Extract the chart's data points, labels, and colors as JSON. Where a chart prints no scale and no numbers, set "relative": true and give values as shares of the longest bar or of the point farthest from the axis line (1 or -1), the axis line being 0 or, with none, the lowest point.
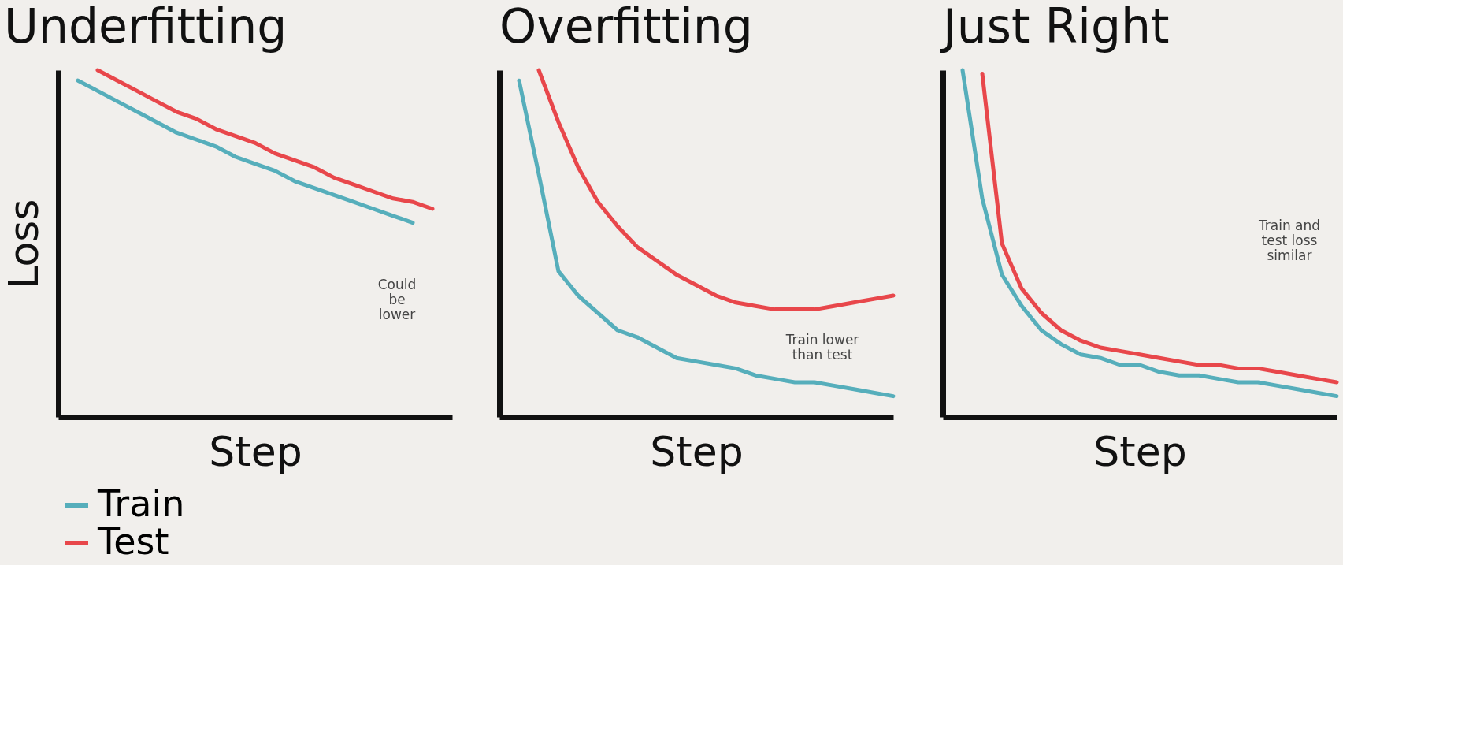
{
  "chart_data": [
    {
      "type": "line",
      "title": "Underfitting",
      "xlabel": "Step",
      "ylabel": "Loss",
      "relative": true,
      "grid": false,
      "legend": "bottom",
      "marker": "none",
      "line_style": "solid",
      "tick_labels": false,
      "categories": [
        null,
        null,
        null,
        null,
        null,
        null,
        null,
        null,
        null,
        null,
        null,
        null,
        null,
        null,
        null,
        null,
        null,
        null,
        null,
        null,
        null
      ],
      "series": [
        {
          "name": "Train",
          "color": "#56aebb",
          "values": [
            null,
            0.97,
            0.94,
            0.91,
            0.88,
            0.85,
            0.82,
            0.8,
            0.78,
            0.75,
            0.73,
            0.71,
            0.68,
            0.66,
            0.64,
            0.62,
            0.6,
            0.58,
            0.56,
            null,
            null
          ]
        },
        {
          "name": "Test",
          "color": "#e8474b",
          "values": [
            null,
            null,
            1.0,
            0.97,
            0.94,
            0.91,
            0.88,
            0.86,
            0.83,
            0.81,
            0.79,
            0.76,
            0.74,
            0.72,
            0.69,
            0.67,
            0.65,
            0.63,
            0.62,
            0.6,
            null
          ]
        }
      ],
      "annotations": [
        "Could\nbe\nlower"
      ]
    },
    {
      "type": "line",
      "title": "Overfitting",
      "xlabel": "Step",
      "relative": true,
      "grid": false,
      "legend": "bottom",
      "marker": "none",
      "line_style": "solid",
      "tick_labels": false,
      "categories": [
        null,
        null,
        null,
        null,
        null,
        null,
        null,
        null,
        null,
        null,
        null,
        null,
        null,
        null,
        null,
        null,
        null,
        null,
        null,
        null,
        null
      ],
      "series": [
        {
          "name": "Train",
          "color": "#56aebb",
          "values": [
            null,
            0.97,
            0.7,
            0.42,
            0.35,
            0.3,
            0.25,
            0.23,
            0.2,
            0.17,
            0.16,
            0.15,
            0.14,
            0.12,
            0.11,
            0.1,
            0.1,
            0.09,
            0.08,
            0.07,
            0.06
          ]
        },
        {
          "name": "Test",
          "color": "#e8474b",
          "values": [
            null,
            null,
            1.0,
            0.85,
            0.72,
            0.62,
            0.55,
            0.49,
            0.45,
            0.41,
            0.38,
            0.35,
            0.33,
            0.32,
            0.31,
            0.31,
            0.31,
            0.32,
            0.33,
            0.34,
            0.35
          ]
        }
      ],
      "annotations": [
        "Train lower\nthan test"
      ]
    },
    {
      "type": "line",
      "title": "Just Right",
      "xlabel": "Step",
      "relative": true,
      "grid": false,
      "legend": "bottom",
      "marker": "none",
      "line_style": "solid",
      "tick_labels": false,
      "categories": [
        null,
        null,
        null,
        null,
        null,
        null,
        null,
        null,
        null,
        null,
        null,
        null,
        null,
        null,
        null,
        null,
        null,
        null,
        null,
        null,
        null
      ],
      "series": [
        {
          "name": "Train",
          "color": "#56aebb",
          "values": [
            null,
            1.0,
            0.63,
            0.41,
            0.32,
            0.25,
            0.21,
            0.18,
            0.17,
            0.15,
            0.15,
            0.13,
            0.12,
            0.12,
            0.11,
            0.1,
            0.1,
            0.09,
            0.08,
            0.07,
            0.06
          ]
        },
        {
          "name": "Test",
          "color": "#e8474b",
          "values": [
            null,
            null,
            0.99,
            0.5,
            0.37,
            0.3,
            0.25,
            0.22,
            0.2,
            0.19,
            0.18,
            0.17,
            0.16,
            0.15,
            0.15,
            0.14,
            0.14,
            0.13,
            0.12,
            0.11,
            0.1
          ]
        }
      ],
      "annotations": [
        "Train and\ntest loss\nsimilar"
      ]
    }
  ]
}
